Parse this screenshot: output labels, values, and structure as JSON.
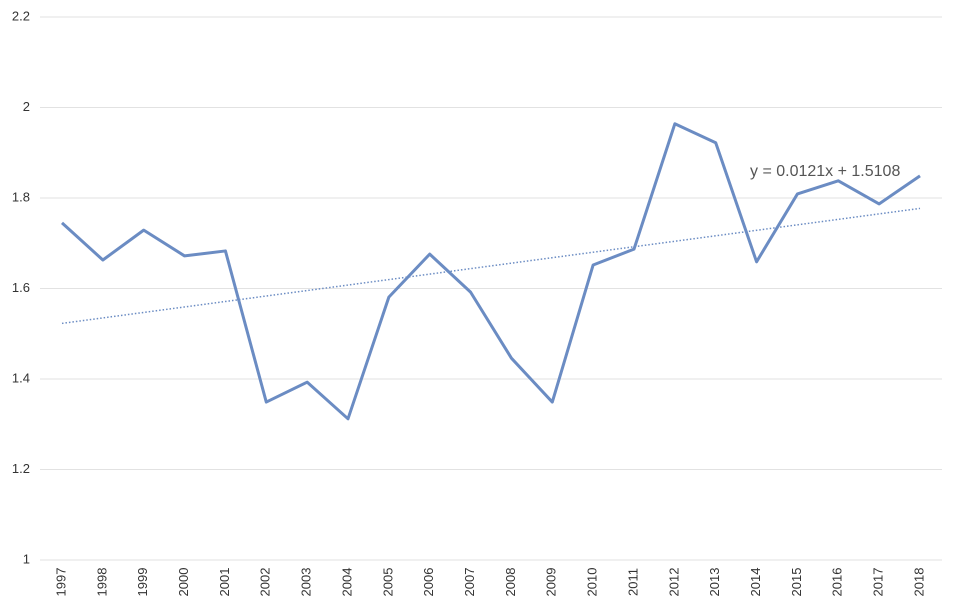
{
  "chart_data": {
    "type": "line",
    "categories": [
      "1997",
      "1998",
      "1999",
      "2000",
      "2001",
      "2002",
      "2003",
      "2004",
      "2005",
      "2006",
      "2007",
      "2008",
      "2009",
      "2010",
      "2011",
      "2012",
      "2013",
      "2014",
      "2015",
      "2016",
      "2017",
      "2018"
    ],
    "series": [
      {
        "color": "#6b8cc3",
        "values": [
          1.745,
          1.663,
          1.729,
          1.672,
          1.683,
          1.349,
          1.393,
          1.312,
          1.581,
          1.676,
          1.592,
          1.446,
          1.349,
          1.652,
          1.687,
          1.964,
          1.922,
          1.659,
          1.809,
          1.838,
          1.787,
          1.849
        ]
      }
    ],
    "trendline": {
      "slope": 0.0121,
      "intercept": 1.5108,
      "label": "y = 0.0121x + 1.5108"
    },
    "ylim": [
      1,
      2.2
    ],
    "yticks": [
      1,
      1.2,
      1.4,
      1.6,
      1.8,
      2,
      2.2
    ],
    "grid": true
  }
}
